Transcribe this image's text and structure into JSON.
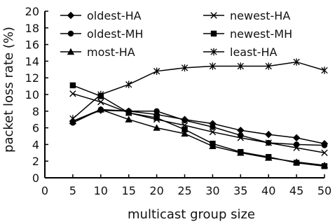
{
  "chart_data": {
    "type": "line",
    "title": "",
    "xlabel": "multicast group size",
    "ylabel": "packet loss rate (%)",
    "x": [
      5,
      10,
      15,
      20,
      25,
      30,
      35,
      40,
      45,
      50
    ],
    "x_ticks": [
      "0",
      "5",
      "10",
      "15",
      "20",
      "25",
      "30",
      "35",
      "40",
      "45",
      "50"
    ],
    "y_ticks": [
      "0",
      "2",
      "4",
      "6",
      "8",
      "10",
      "12",
      "14",
      "16",
      "18",
      "20"
    ],
    "xlim": [
      0,
      50
    ],
    "ylim": [
      0,
      20
    ],
    "grid": false,
    "legend_position": "top",
    "series": [
      {
        "name": "oldest-HA",
        "marker": "diamond",
        "values": [
          6.8,
          8.1,
          8.0,
          7.6,
          7.0,
          6.5,
          5.7,
          5.2,
          4.8,
          4.1
        ]
      },
      {
        "name": "newest-HA",
        "marker": "x",
        "values": [
          10.1,
          9.1,
          7.8,
          7.0,
          6.3,
          5.5,
          4.8,
          4.2,
          3.6,
          3.0
        ]
      },
      {
        "name": "oldest-MH",
        "marker": "circle",
        "values": [
          6.6,
          8.2,
          8.0,
          8.0,
          6.9,
          6.1,
          5.1,
          4.2,
          4.0,
          3.9
        ]
      },
      {
        "name": "newest-MH",
        "marker": "square",
        "values": [
          11.1,
          9.8,
          7.8,
          7.2,
          5.8,
          4.1,
          3.1,
          2.5,
          1.8,
          1.4
        ]
      },
      {
        "name": "most-HA",
        "marker": "triangle",
        "values": [
          6.8,
          8.2,
          7.0,
          6.0,
          5.3,
          3.8,
          3.0,
          2.4,
          1.9,
          1.5
        ]
      },
      {
        "name": "least-HA",
        "marker": "star",
        "values": [
          7.1,
          10.0,
          11.2,
          12.8,
          13.2,
          13.4,
          13.4,
          13.4,
          13.9,
          12.9
        ]
      }
    ]
  }
}
